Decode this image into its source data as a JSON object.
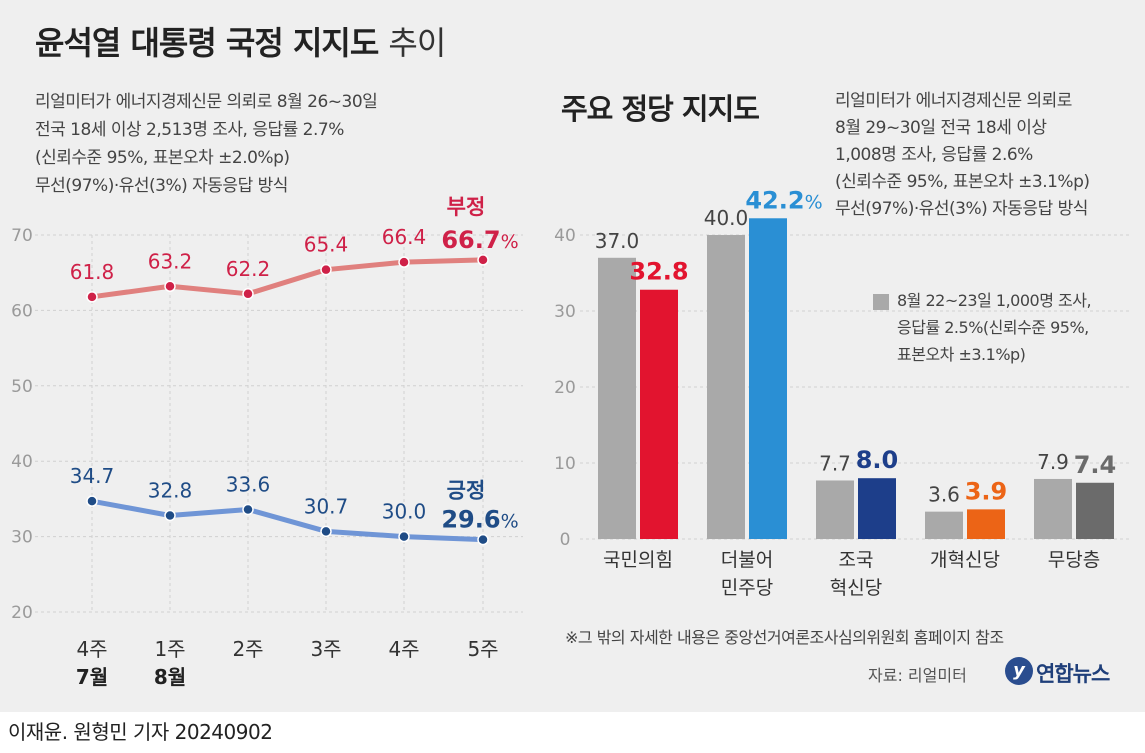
{
  "title": {
    "main": "윤석열 대통령 국정 지지도",
    "sub": "추이"
  },
  "approval_survey": [
    "리얼미터가 에너지경제신문 의뢰로 8월 26~30일",
    "전국 18세 이상 2,513명 조사, 응답률 2.7%",
    "(신뢰수준 95%, 표본오차 ±2.0%p)",
    "무선(97%)·유선(3%) 자동응답 방식"
  ],
  "party_title": "주요 정당 지지도",
  "party_survey": [
    "리얼미터가 에너지경제신문 의뢰로",
    "8월 29~30일 전국 18세 이상",
    "1,008명 조사, 응답률 2.6%",
    "(신뢰수준 95%, 표본오차 ±3.1%p)",
    "무선(97%)·유선(3%) 자동응답 방식"
  ],
  "legend": [
    "8월 22~23일 1,000명 조사,",
    "응답률 2.5%(신뢰수준 95%,",
    "표본오차 ±3.1%p)"
  ],
  "note": "※그 밖의 자세한 내용은 중앙선거여론조사심의위원회 홈페이지 참조",
  "source": "자료: 리얼미터",
  "logo": "연합뉴스",
  "byline": "이재윤. 원형민 기자  20240902",
  "colors": {
    "negative": "#e0807e",
    "negative_dot": "#cf2148",
    "positive": "#6f95d6",
    "positive_dot": "#1f4c86",
    "grey_bar": "#a9a9a9",
    "ppp": "#e2142f",
    "dp": "#2a8fd4",
    "rebuild": "#1d3e8a",
    "reform": "#ec6416",
    "none": "#6b6b6b"
  },
  "chart_data": [
    {
      "type": "line",
      "categories": [
        "4주|7월",
        "1주|8월",
        "2주",
        "3주",
        "4주",
        "5주"
      ],
      "ylim": [
        20,
        70
      ],
      "yticks": [
        20,
        30,
        40,
        50,
        60,
        70
      ],
      "grid": true,
      "series": [
        {
          "name": "부정",
          "values": [
            61.8,
            63.2,
            62.2,
            65.4,
            66.4,
            66.7
          ],
          "end_label": "66.7",
          "unit": "%"
        },
        {
          "name": "긍정",
          "values": [
            34.7,
            32.8,
            33.6,
            30.7,
            30.0,
            29.6
          ],
          "end_label": "29.6",
          "unit": "%"
        }
      ]
    },
    {
      "type": "bar",
      "categories": [
        "국민의힘",
        "더불어|민주당",
        "조국|혁신당",
        "개혁신당",
        "무당층"
      ],
      "ylim": [
        0,
        40
      ],
      "yticks": [
        0,
        10,
        20,
        30,
        40
      ],
      "grid": true,
      "series": [
        {
          "values": [
            37.0,
            40.0,
            7.7,
            3.6,
            7.9
          ],
          "labels": [
            "37.0",
            "40.0",
            "7.7",
            "3.6",
            "7.9"
          ]
        },
        {
          "values": [
            32.8,
            42.2,
            8.0,
            3.9,
            7.4
          ],
          "labels": [
            "32.8",
            "42.2%",
            "8.0",
            "3.9",
            "7.4"
          ]
        }
      ]
    }
  ]
}
